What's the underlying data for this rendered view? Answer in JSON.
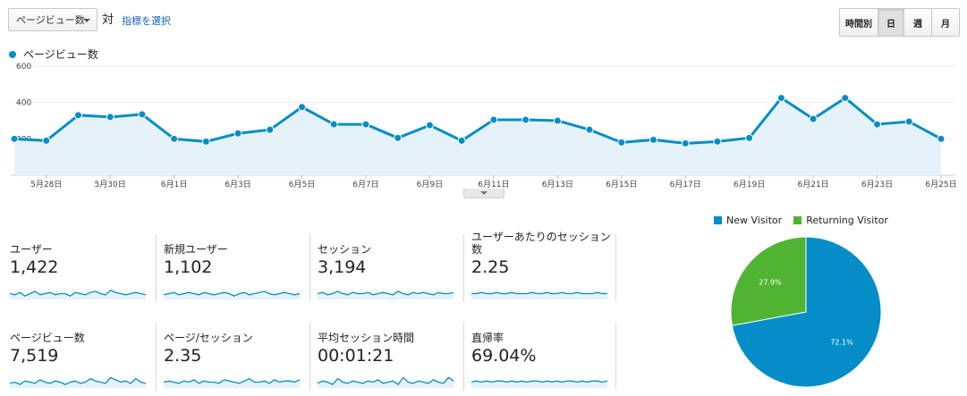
{
  "toolbar": {
    "metric_select": "ページビュー数",
    "vs_label": "対",
    "choose_metric": "指標を選択",
    "periods": [
      {
        "label": "時間別",
        "active": false
      },
      {
        "label": "日",
        "active": true
      },
      {
        "label": "週",
        "active": false
      },
      {
        "label": "月",
        "active": false
      }
    ]
  },
  "chart_data": [
    {
      "type": "area",
      "series": [
        {
          "name": "ページビュー数",
          "color": "#058dc7",
          "values": [
            200,
            190,
            330,
            320,
            335,
            200,
            185,
            230,
            250,
            375,
            280,
            280,
            205,
            275,
            190,
            305,
            305,
            300,
            250,
            180,
            195,
            175,
            185,
            205,
            425,
            310,
            425,
            280,
            295,
            200
          ]
        }
      ],
      "y_ticks": [
        "600",
        "400",
        "200"
      ],
      "ylim": [
        0,
        600
      ],
      "x_tick_labels": [
        "5月28日",
        "5月30日",
        "6月1日",
        "6月3日",
        "6月5日",
        "6月7日",
        "6月9日",
        "6月11日",
        "6月13日",
        "6月15日",
        "6月17日",
        "6月19日",
        "6月21日",
        "6月23日",
        "6月25日"
      ]
    },
    {
      "type": "pie",
      "legend": [
        "New Visitor",
        "Returning Visitor"
      ],
      "values": [
        72.1,
        27.9
      ],
      "labels": [
        "72.1%",
        "27.9%"
      ],
      "colors": [
        "#058dc7",
        "#50b432"
      ]
    }
  ],
  "scorecards": [
    {
      "label": "ユーザー",
      "value": "1,422"
    },
    {
      "label": "新規ユーザー",
      "value": "1,102"
    },
    {
      "label": "セッション",
      "value": "3,194"
    },
    {
      "label": "ユーザーあたりのセッション数",
      "value": "2.25"
    },
    {
      "label": "ページビュー数",
      "value": "7,519"
    },
    {
      "label": "ページ/セッション",
      "value": "2.35"
    },
    {
      "label": "平均セッション時間",
      "value": "00:01:21"
    },
    {
      "label": "直帰率",
      "value": "69.04%"
    }
  ]
}
